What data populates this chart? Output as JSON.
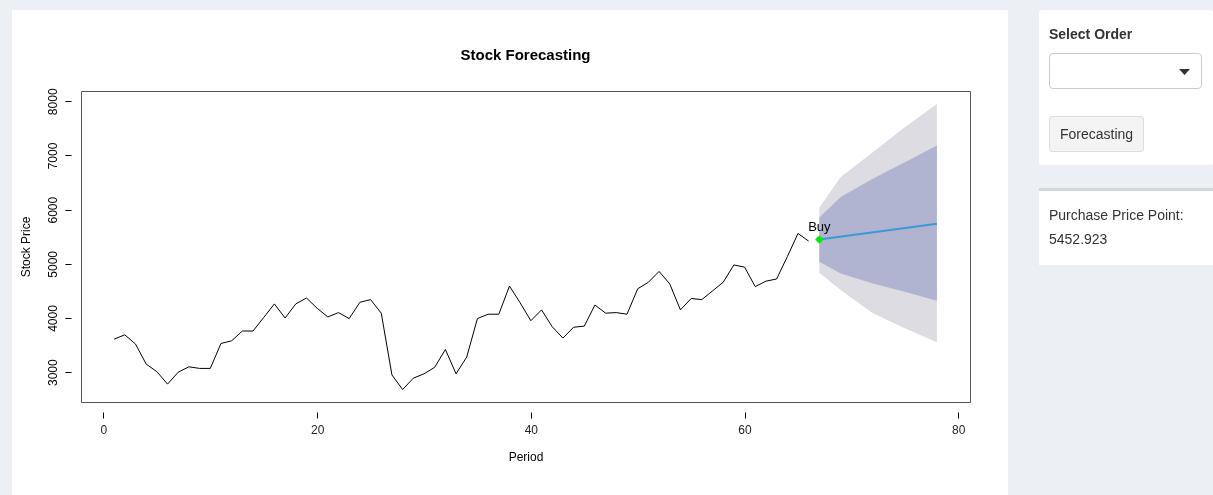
{
  "chart_data": {
    "type": "line",
    "title": "Stock Forecasting",
    "xlabel": "Period",
    "ylabel": "Stock Price",
    "xlim": [
      -2.1,
      81.1
    ],
    "ylim": [
      2450,
      8190
    ],
    "xticks": [
      0,
      20,
      40,
      60,
      80
    ],
    "yticks": [
      3000,
      4000,
      5000,
      6000,
      7000,
      8000
    ],
    "series": [
      {
        "type": "line",
        "color": "#000000",
        "x": [
          1,
          2,
          3,
          4,
          5,
          6,
          7,
          8,
          9,
          10,
          11,
          12,
          13,
          14,
          15,
          16,
          17,
          18,
          19,
          20,
          21,
          22,
          23,
          24,
          25,
          26,
          27,
          28,
          29,
          30,
          31,
          32,
          33,
          34,
          35,
          36,
          37,
          38,
          39,
          40,
          41,
          42,
          43,
          44,
          45,
          46,
          47,
          48,
          49,
          50,
          51,
          52,
          53,
          54,
          55,
          56,
          57,
          58,
          59,
          60,
          61,
          62,
          63,
          64,
          65,
          66
        ],
        "values": [
          3610,
          3690,
          3520,
          3150,
          3010,
          2780,
          3000,
          3100,
          3070,
          3070,
          3530,
          3580,
          3760,
          3760,
          4010,
          4260,
          4000,
          4260,
          4370,
          4180,
          4020,
          4100,
          3990,
          4290,
          4340,
          4090,
          2950,
          2680,
          2890,
          2970,
          3090,
          3420,
          2970,
          3280,
          3990,
          4070,
          4070,
          4590,
          4280,
          3950,
          4150,
          3840,
          3630,
          3830,
          3850,
          4240,
          4090,
          4100,
          4070,
          4540,
          4660,
          4860,
          4630,
          4150,
          4360,
          4340,
          4500,
          4660,
          4980,
          4940,
          4580,
          4680,
          4720,
          5130,
          5560,
          5420
        ]
      },
      {
        "type": "line",
        "color": "#dcdce2",
        "x": [
          67,
          69,
          72,
          75,
          78
        ],
        "values": [
          null,
          null,
          null,
          null,
          null
        ],
        "lower": [
          4834,
          4515,
          4086,
          3810,
          3552
        ],
        "upper": [
          6037,
          6601,
          7061,
          7521,
          7951
        ]
      },
      {
        "type": "line",
        "color": "#b0b4d0",
        "x": [
          67,
          69,
          72,
          75,
          78
        ],
        "values": [
          null,
          null,
          null,
          null,
          null
        ],
        "lower": [
          5037,
          4822,
          4638,
          4485,
          4319
        ],
        "upper": [
          5853,
          6233,
          6571,
          6877,
          7184
        ]
      },
      {
        "type": "line",
        "color": "#3a9ad9",
        "x": [
          67,
          78
        ],
        "values": [
          5450,
          5740
        ]
      },
      {
        "type": "scatter",
        "color": "#00ee00",
        "marker": "diamond",
        "x": [
          67
        ],
        "values": [
          5450
        ]
      }
    ],
    "annotations": [
      {
        "text": "Buy",
        "x": 67,
        "y": 5450
      },
      "Select Order",
      "Forecasting",
      "Purchase Price Point:",
      "5452.923"
    ]
  }
}
